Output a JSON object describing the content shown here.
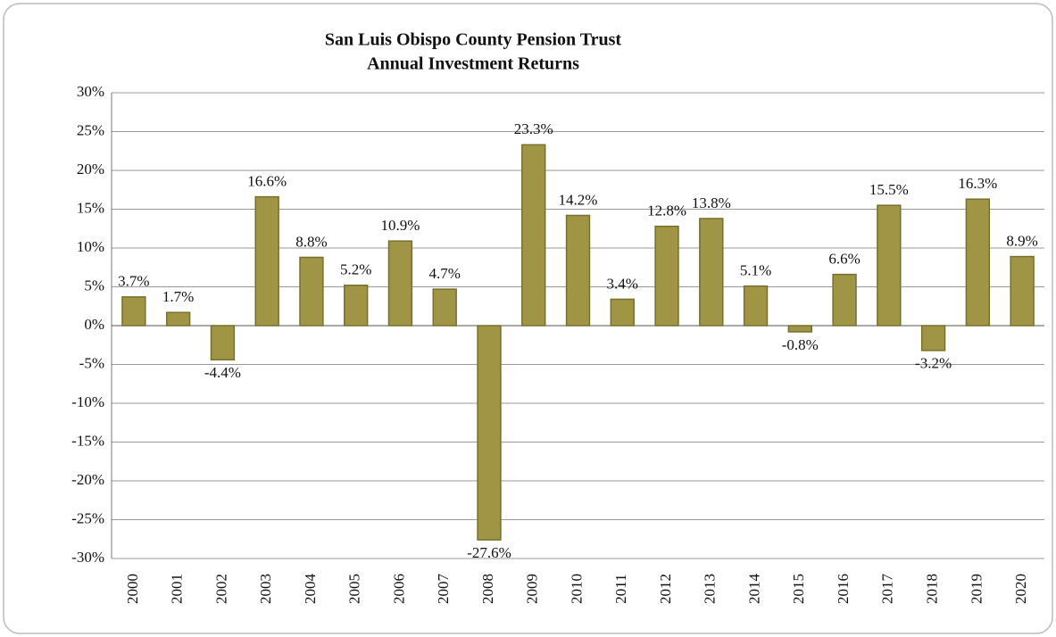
{
  "chart_data": {
    "type": "bar",
    "title": "San Luis Obispo County Pension Trust",
    "subtitle": "Annual Investment Returns",
    "categories": [
      "2000",
      "2001",
      "2002",
      "2003",
      "2004",
      "2005",
      "2006",
      "2007",
      "2008",
      "2009",
      "2010",
      "2011",
      "2012",
      "2013",
      "2014",
      "2015",
      "2016",
      "2017",
      "2018",
      "2019",
      "2020"
    ],
    "values": [
      3.7,
      1.7,
      -4.4,
      16.6,
      8.8,
      5.2,
      10.9,
      4.7,
      -27.6,
      23.3,
      14.2,
      3.4,
      12.8,
      13.8,
      5.1,
      -0.8,
      6.6,
      15.5,
      -3.2,
      16.3,
      8.9
    ],
    "value_labels": [
      "3.7%",
      "1.7%",
      "-4.4%",
      "16.6%",
      "8.8%",
      "5.2%",
      "10.9%",
      "4.7%",
      "-27.6%",
      "23.3%",
      "14.2%",
      "3.4%",
      "12.8%",
      "13.8%",
      "5.1%",
      "-0.8%",
      "6.6%",
      "15.5%",
      "-3.2%",
      "16.3%",
      "8.9%"
    ],
    "color": "#a09545",
    "ylim": [
      -30,
      30
    ],
    "yticks": [
      {
        "value": -30,
        "label": "-30%"
      },
      {
        "value": -25,
        "label": "-25%"
      },
      {
        "value": -20,
        "label": "-20%"
      },
      {
        "value": -15,
        "label": "-15%"
      },
      {
        "value": -10,
        "label": "-10%"
      },
      {
        "value": -5,
        "label": "-5%"
      },
      {
        "value": 0,
        "label": "0%"
      },
      {
        "value": 5,
        "label": "5%"
      },
      {
        "value": 10,
        "label": "10%"
      },
      {
        "value": 15,
        "label": "15%"
      },
      {
        "value": 20,
        "label": "20%"
      },
      {
        "value": 25,
        "label": "25%"
      },
      {
        "value": 30,
        "label": "30%"
      }
    ],
    "grid": true
  }
}
